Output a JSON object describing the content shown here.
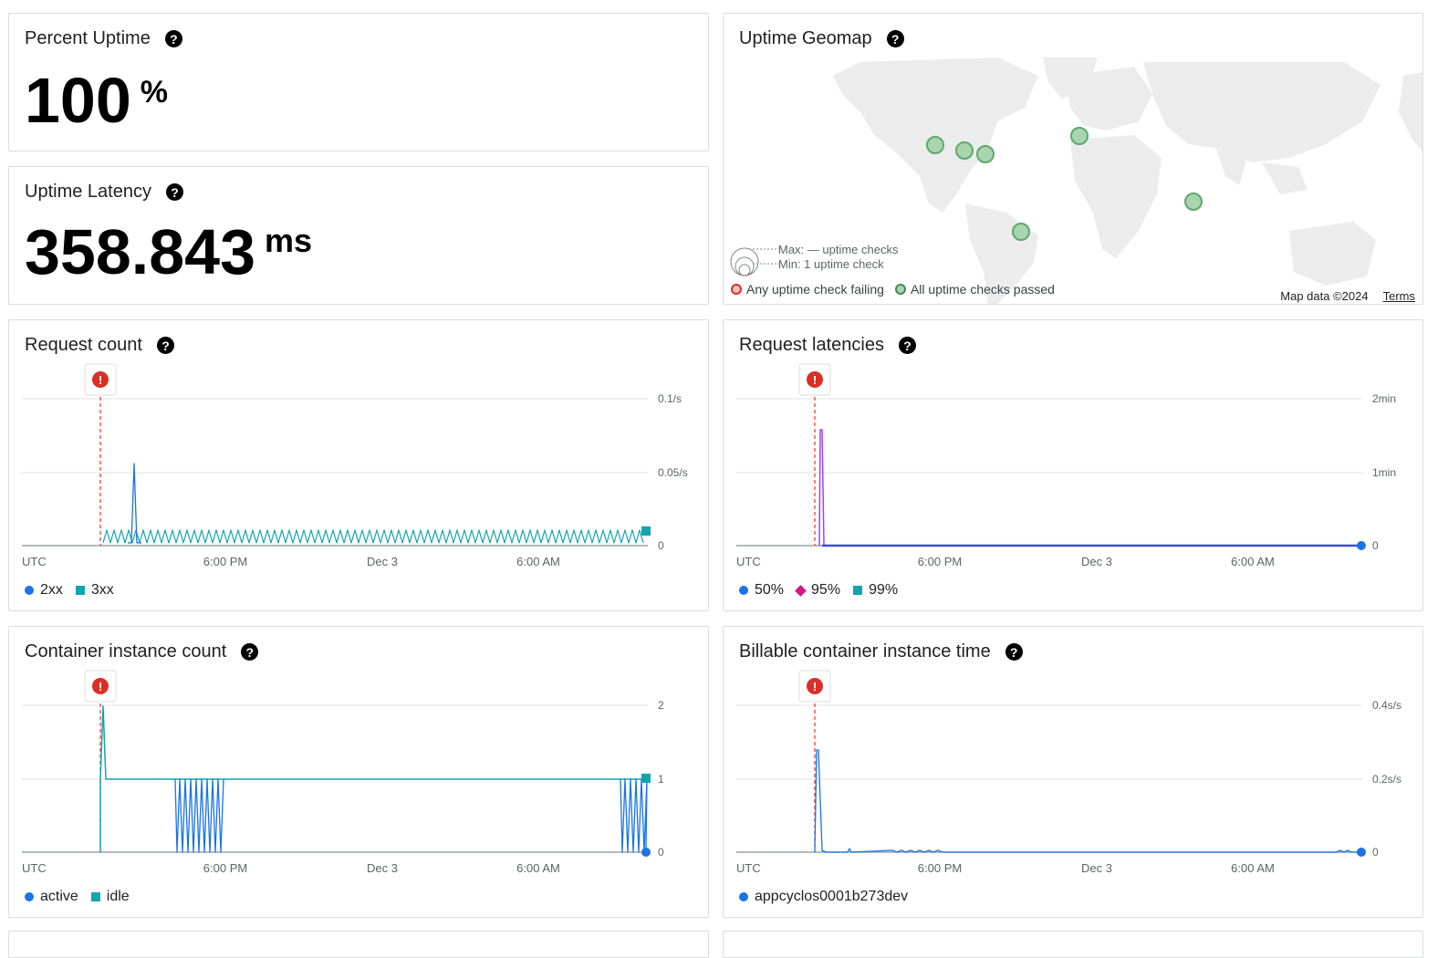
{
  "percent_uptime": {
    "title": "Percent Uptime",
    "value": "100",
    "unit": "%"
  },
  "uptime_latency": {
    "title": "Uptime Latency",
    "value": "358.843",
    "unit": "ms"
  },
  "uptime_geomap": {
    "title": "Uptime Geomap",
    "size_max": "Max: — uptime checks",
    "size_min": "Min: 1 uptime check",
    "legend_failing": "Any uptime check failing",
    "legend_passed": "All uptime checks passed",
    "map_data": "Map data ©2024",
    "terms": "Terms",
    "colors": {
      "passed_fill": "#a8d5b0",
      "passed_stroke": "#5ca86b",
      "failing_fill": "#f6c1c0",
      "failing_stroke": "#d93025",
      "land": "#ececec"
    }
  },
  "x_axis": {
    "start_label": "UTC",
    "ticks": [
      "6:00 PM",
      "Dec 3",
      "6:00 AM"
    ]
  },
  "incident_icon": "alert-incident-icon",
  "charts": {
    "request_count": {
      "title": "Request count",
      "y_ticks": [
        "0.1/s",
        "0.05/s",
        "0"
      ],
      "legend": [
        {
          "label": "2xx",
          "shape": "dot",
          "color": "#1a73e8"
        },
        {
          "label": "3xx",
          "shape": "square",
          "color": "#12a4af"
        }
      ]
    },
    "request_latencies": {
      "title": "Request latencies",
      "y_ticks": [
        "2min",
        "1min",
        "0"
      ],
      "legend": [
        {
          "label": "50%",
          "shape": "dot",
          "color": "#1a73e8"
        },
        {
          "label": "95%",
          "shape": "diamond",
          "color": "#d01884"
        },
        {
          "label": "99%",
          "shape": "square",
          "color": "#12a4af"
        }
      ]
    },
    "container_instance_count": {
      "title": "Container instance count",
      "y_ticks": [
        "2",
        "1",
        "0"
      ],
      "legend": [
        {
          "label": "active",
          "shape": "dot",
          "color": "#1a73e8"
        },
        {
          "label": "idle",
          "shape": "square",
          "color": "#12a4af"
        }
      ]
    },
    "billable_instance_time": {
      "title": "Billable container instance time",
      "y_ticks": [
        "0.4s/s",
        "0.2s/s",
        "0"
      ],
      "legend": [
        {
          "label": "appcyclos0001b273dev",
          "shape": "dot",
          "color": "#1a73e8"
        }
      ]
    }
  }
}
